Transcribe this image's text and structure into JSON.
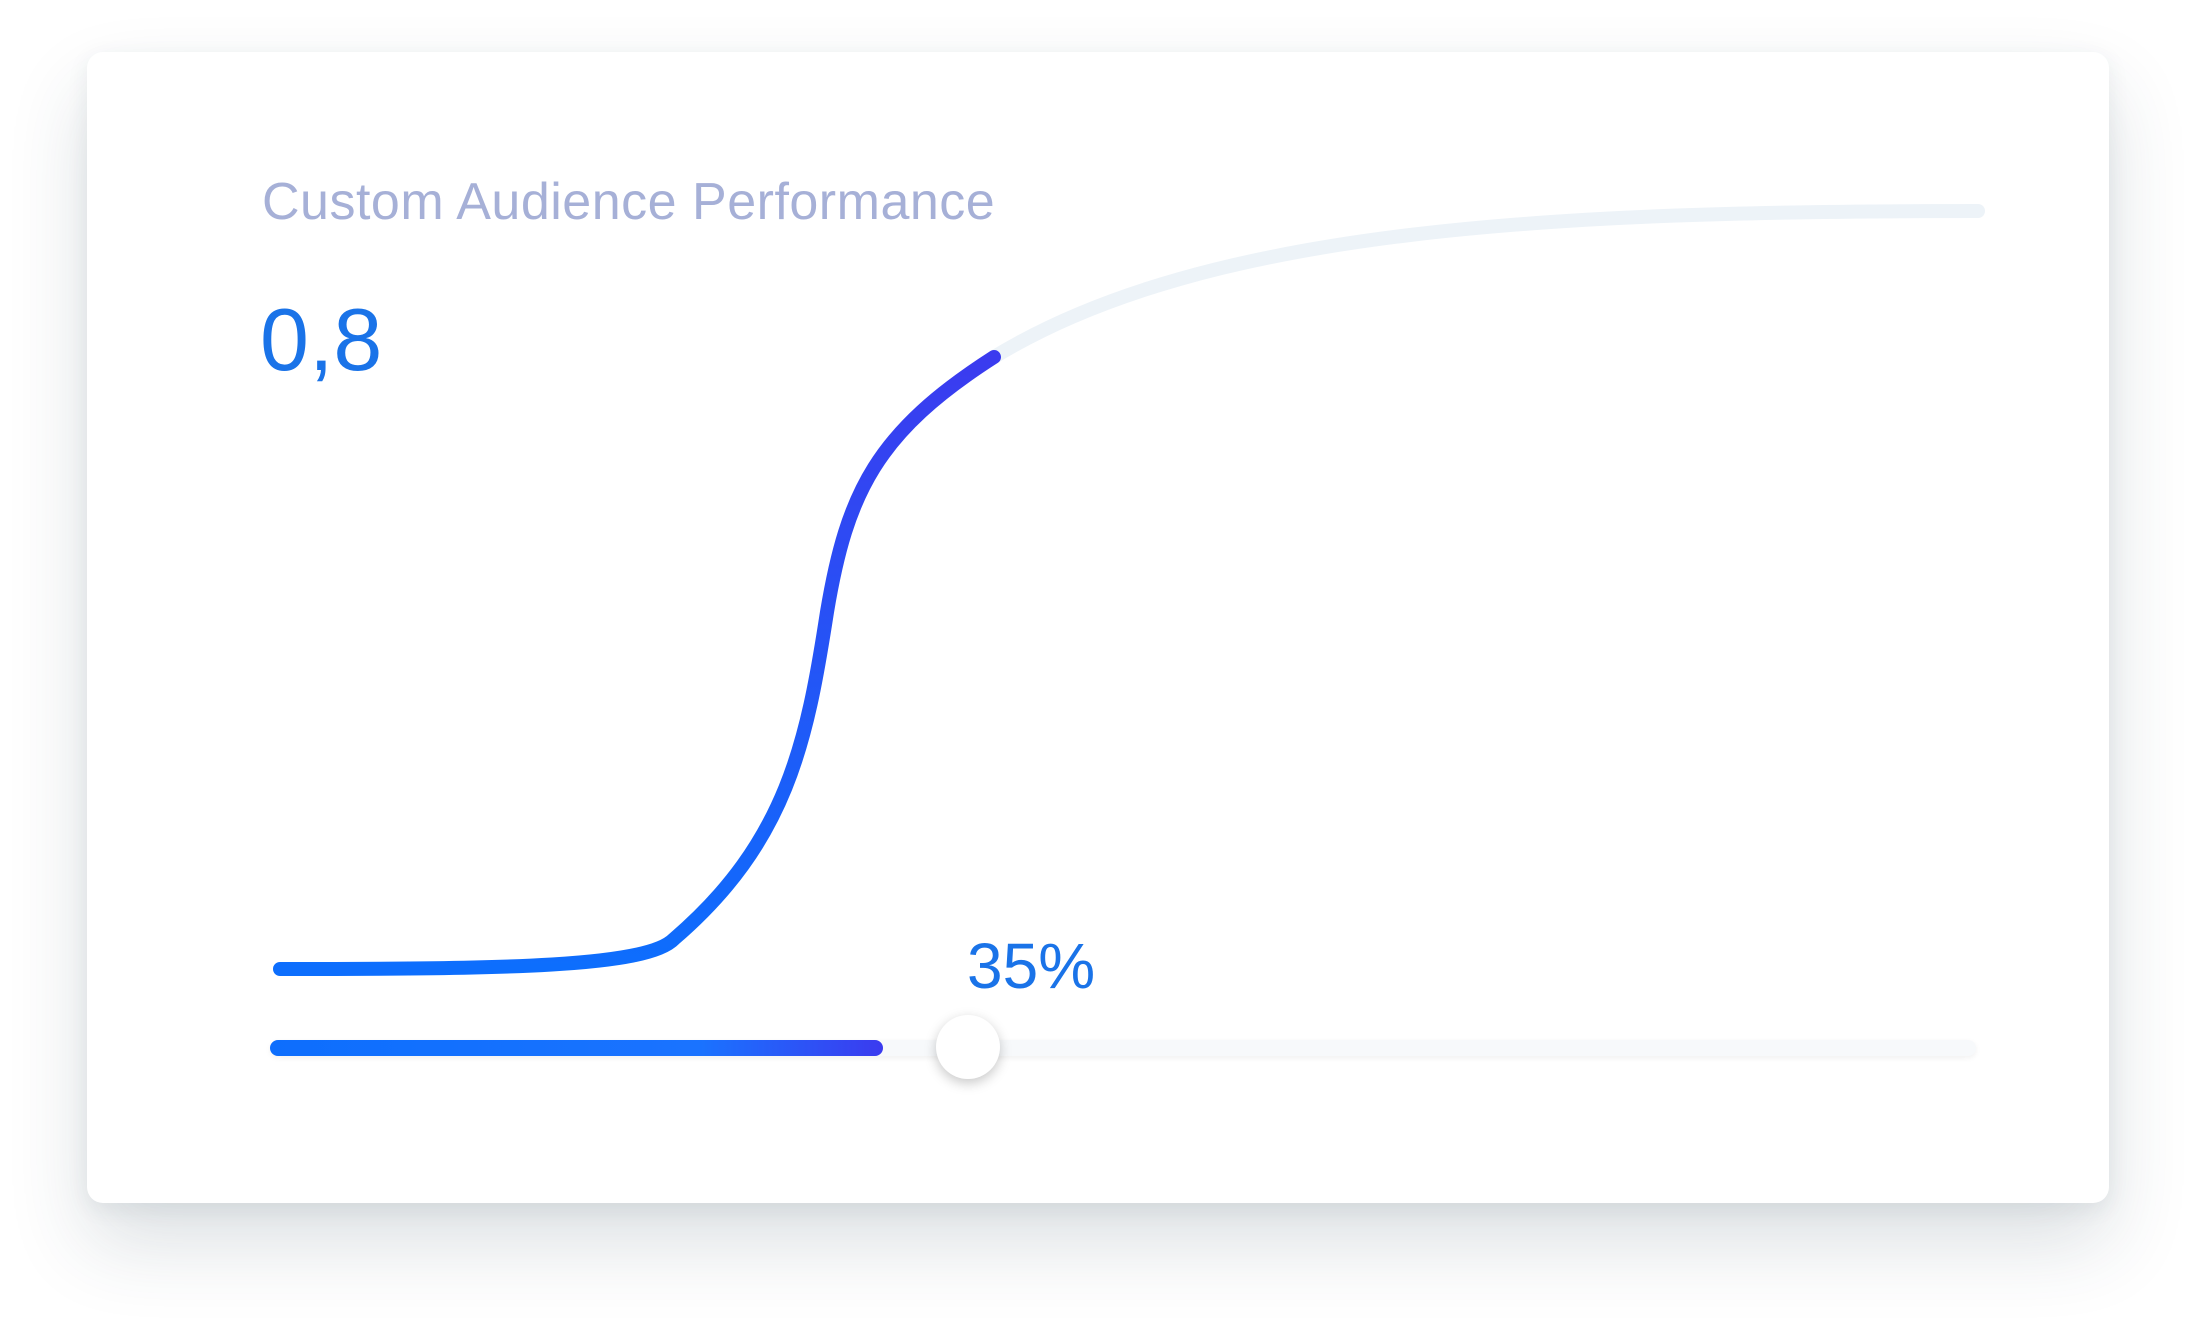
{
  "card": {
    "title": "Custom Audience Performance",
    "metric_value": "0,8"
  },
  "slider": {
    "value_percent": 35,
    "label": "35%"
  },
  "curve": {
    "type": "line",
    "progress_fraction": 0.42,
    "x": [
      0,
      0.1,
      0.2,
      0.3,
      0.35,
      0.4,
      0.5,
      0.6,
      0.7,
      0.8,
      0.9,
      1.0
    ],
    "y": [
      0,
      0.01,
      0.06,
      0.48,
      0.77,
      0.86,
      0.93,
      0.96,
      0.98,
      0.99,
      0.995,
      1.0
    ]
  },
  "colors": {
    "title": "#a6b0d7",
    "accent": "#1a73e8",
    "curve_active_start": "#0d6efd",
    "curve_active_end": "#3b3bef",
    "curve_inactive": "#edf3f8",
    "track": "#f7f9fb"
  }
}
